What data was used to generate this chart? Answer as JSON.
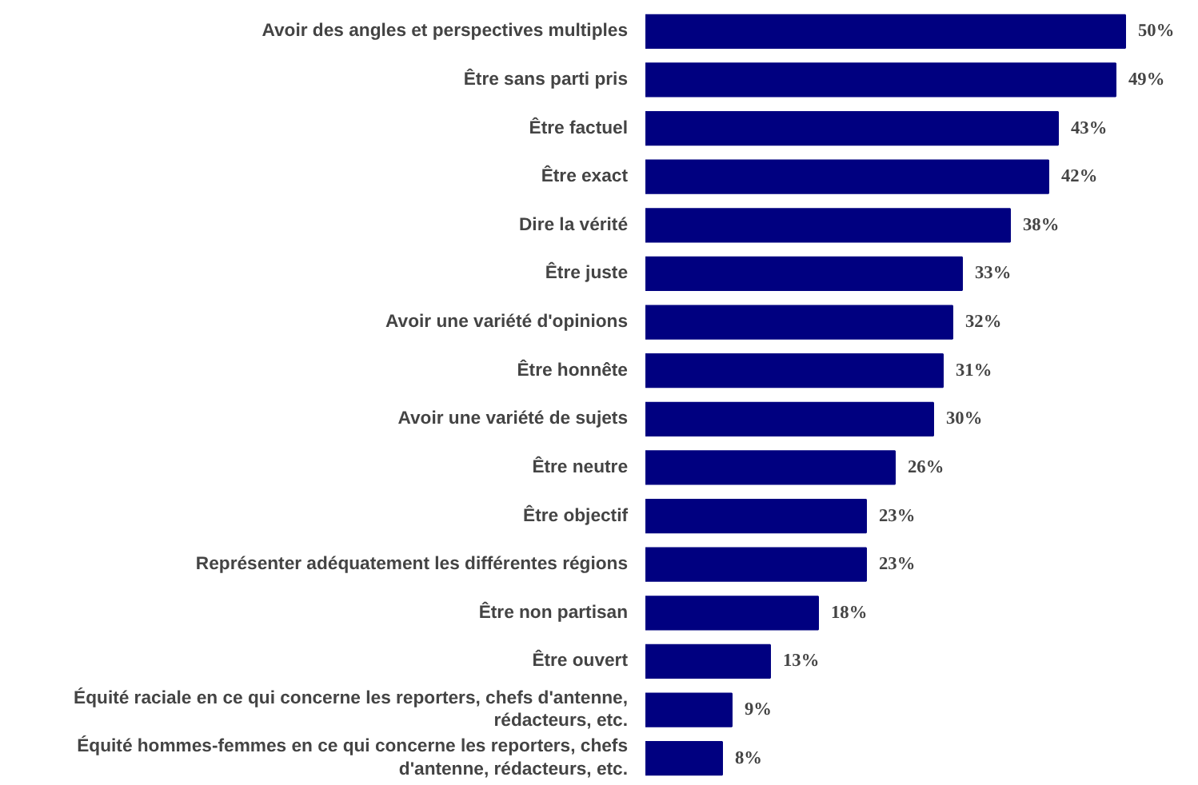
{
  "chart_data": {
    "type": "bar",
    "orientation": "horizontal",
    "grid": false,
    "categories": [
      "Avoir des angles et perspectives multiples",
      "Être sans parti pris",
      "Être factuel",
      "Être exact",
      "Dire la vérité",
      "Être juste",
      "Avoir une variété d'opinions",
      "Être honnête",
      "Avoir une variété de sujets",
      "Être neutre",
      "Être objectif",
      "Représenter adéquatement les différentes régions",
      "Être non partisan",
      "Être ouvert",
      "Équité raciale en ce qui concerne les reporters, chefs d'antenne, rédacteurs, etc.",
      "Équité hommes-femmes en ce qui concerne les reporters, chefs d'antenne, rédacteurs, etc."
    ],
    "values": [
      50,
      49,
      43,
      42,
      38,
      33,
      32,
      31,
      30,
      26,
      23,
      23,
      18,
      13,
      9,
      8
    ],
    "value_labels": [
      "50%",
      "49%",
      "43%",
      "42%",
      "38%",
      "33%",
      "32%",
      "31%",
      "30%",
      "26%",
      "23%",
      "23%",
      "18%",
      "13%",
      "9%",
      "8%"
    ],
    "color": "#000080"
  }
}
